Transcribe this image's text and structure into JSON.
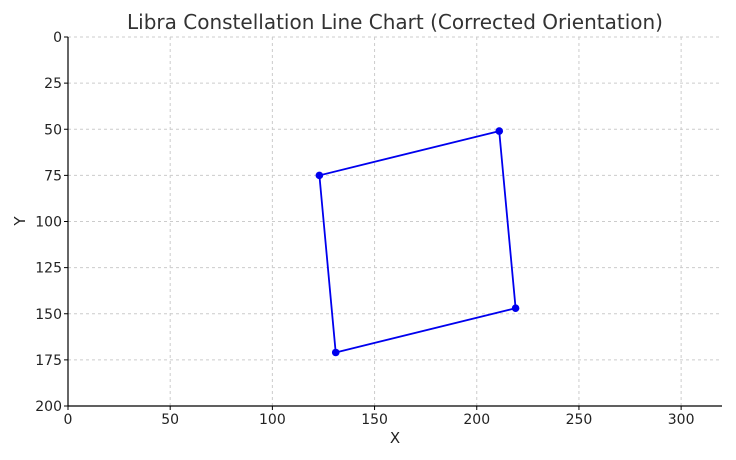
{
  "chart_data": {
    "type": "line",
    "title": "Libra Constellation Line Chart (Corrected Orientation)",
    "xlabel": "X",
    "ylabel": "Y",
    "xlim": [
      0,
      320
    ],
    "ylim": [
      0,
      200
    ],
    "y_inverted": true,
    "grid": true,
    "x_ticks": [
      0,
      50,
      100,
      150,
      200,
      250,
      300
    ],
    "y_ticks": [
      0,
      25,
      50,
      75,
      100,
      125,
      150,
      175,
      200
    ],
    "series": [
      {
        "color": "#0000ee",
        "points": [
          {
            "x": 211,
            "y": 51
          },
          {
            "x": 123,
            "y": 75
          },
          {
            "x": 131,
            "y": 171
          },
          {
            "x": 219,
            "y": 147
          },
          {
            "x": 211,
            "y": 51
          }
        ]
      }
    ]
  }
}
